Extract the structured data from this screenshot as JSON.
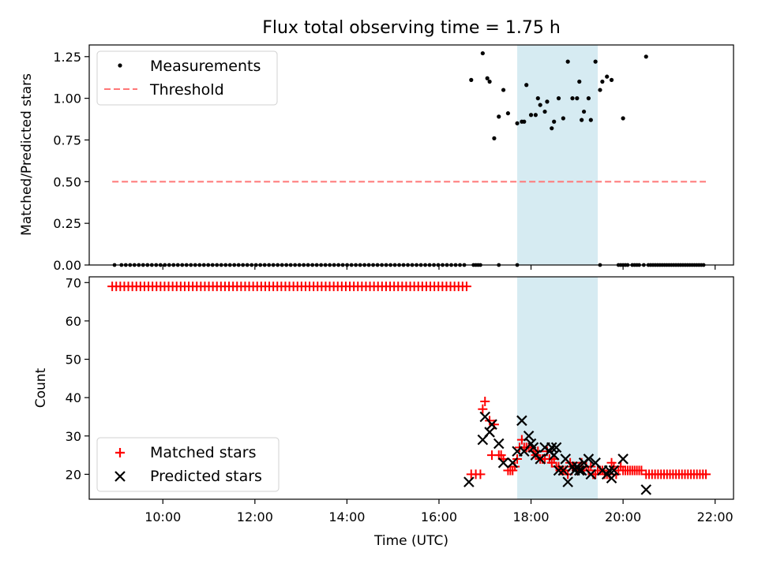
{
  "chart_data": [
    {
      "type": "scatter",
      "title": "Flux total observing time = 1.75 h",
      "xlabel": "",
      "ylabel": "Matched/Predicted stars",
      "xlim_hours": [
        8.4,
        22.4
      ],
      "ylim": [
        0,
        1.32
      ],
      "yticks": [
        0.0,
        0.25,
        0.5,
        0.75,
        1.0,
        1.25
      ],
      "ytick_labels": [
        "0.00",
        "0.25",
        "0.50",
        "0.75",
        "1.00",
        "1.25"
      ],
      "shaded_span_hours": [
        17.7,
        19.45
      ],
      "legend_location": "upper-left",
      "series": [
        {
          "name": "Measurements",
          "marker": "dot",
          "color": "#000000",
          "zero_count": 80,
          "zero_range_hours": [
            9.1,
            16.55
          ],
          "zero_extra_hours": [
            8.95,
            16.75,
            16.8,
            16.85,
            16.9,
            17.3,
            17.7,
            19.5,
            19.9,
            19.95,
            20.0,
            20.05,
            20.1,
            20.2,
            20.25,
            20.3,
            20.35,
            20.45,
            20.55,
            20.6,
            20.65,
            20.7,
            20.75,
            20.8,
            20.85,
            20.9,
            20.95,
            21.0,
            21.05,
            21.1,
            21.15,
            21.2,
            21.25,
            21.3,
            21.35,
            21.4,
            21.45,
            21.5,
            21.55,
            21.6,
            21.65,
            21.7,
            21.75
          ],
          "x_hours": [
            16.7,
            16.95,
            17.05,
            17.1,
            17.2,
            17.3,
            17.4,
            17.5,
            17.7,
            17.8,
            17.85,
            17.9,
            18.0,
            18.1,
            18.15,
            18.2,
            18.3,
            18.35,
            18.45,
            18.5,
            18.6,
            18.7,
            18.8,
            18.9,
            19.0,
            19.05,
            19.1,
            19.15,
            19.25,
            19.3,
            19.4,
            19.5,
            19.55,
            19.65,
            19.75,
            20.0,
            20.5
          ],
          "y": [
            1.11,
            1.27,
            1.12,
            1.1,
            0.76,
            0.89,
            1.05,
            0.91,
            0.85,
            0.86,
            0.86,
            1.08,
            0.9,
            0.9,
            1.0,
            0.96,
            0.92,
            0.98,
            0.82,
            0.86,
            1.0,
            0.88,
            1.22,
            1.0,
            1.0,
            1.1,
            0.87,
            0.92,
            1.0,
            0.87,
            1.22,
            1.05,
            1.1,
            1.13,
            1.11,
            0.88,
            1.25
          ]
        },
        {
          "name": "Threshold",
          "line": "dashed",
          "color": "#ff7777",
          "x_hours": [
            8.9,
            21.8
          ],
          "y": [
            0.5,
            0.5
          ]
        }
      ]
    },
    {
      "type": "scatter",
      "title": "",
      "xlabel": "Time (UTC)",
      "ylabel": "Count",
      "xlim_hours": [
        8.4,
        22.4
      ],
      "ylim": [
        13.5,
        71.5
      ],
      "yticks": [
        20,
        30,
        40,
        50,
        60,
        70
      ],
      "ytick_labels": [
        "20",
        "30",
        "40",
        "50",
        "60",
        "70"
      ],
      "xticks_hours": [
        10,
        12,
        14,
        16,
        18,
        20,
        22
      ],
      "xtick_labels": [
        "10:00",
        "12:00",
        "14:00",
        "16:00",
        "18:00",
        "20:00",
        "22:00"
      ],
      "shaded_span_hours": [
        17.7,
        19.45
      ],
      "legend_location": "lower-left",
      "series": [
        {
          "name": "Matched stars",
          "marker": "plus",
          "color": "#ff0000",
          "constant_segment": {
            "from_hours": 8.9,
            "to_hours": 16.65,
            "step_hours": 0.0875,
            "value": 69
          },
          "tail_segment": {
            "from_hours": 20.5,
            "to_hours": 21.8,
            "step_hours": 0.065,
            "value": 20
          },
          "x_hours": [
            16.7,
            16.8,
            16.9,
            16.95,
            17.0,
            17.1,
            17.15,
            17.2,
            17.3,
            17.35,
            17.4,
            17.5,
            17.55,
            17.6,
            17.65,
            17.7,
            17.75,
            17.8,
            17.85,
            17.9,
            17.95,
            18.0,
            18.05,
            18.1,
            18.15,
            18.2,
            18.25,
            18.3,
            18.35,
            18.4,
            18.45,
            18.5,
            18.55,
            18.6,
            18.65,
            18.7,
            18.75,
            18.8,
            18.85,
            18.9,
            18.95,
            19.0,
            19.05,
            19.1,
            19.15,
            19.2,
            19.25,
            19.3,
            19.35,
            19.4,
            19.45,
            19.5,
            19.55,
            19.6,
            19.65,
            19.7,
            19.75,
            19.8,
            19.85,
            19.9,
            19.95,
            20.0,
            20.05,
            20.1,
            20.15,
            20.2,
            20.25,
            20.3,
            20.35,
            20.4
          ],
          "y": [
            20,
            20,
            20,
            37,
            39,
            34,
            25,
            33,
            25,
            25,
            24,
            21,
            21,
            21,
            22,
            24,
            27,
            29,
            27,
            27,
            27,
            27,
            26,
            25,
            26,
            24,
            24,
            24,
            26,
            24,
            23,
            24,
            22,
            22,
            21,
            21,
            21,
            20,
            23,
            22,
            22,
            21,
            22,
            23,
            21,
            22,
            21,
            22,
            20,
            20,
            21,
            21,
            21,
            20,
            20,
            20,
            23,
            22,
            20,
            21,
            22,
            21,
            21,
            21,
            21,
            21,
            21,
            21,
            21,
            21
          ]
        },
        {
          "name": "Predicted stars",
          "marker": "cross",
          "color": "#000000",
          "x_hours": [
            16.65,
            16.95,
            17.0,
            17.1,
            17.15,
            17.3,
            17.4,
            17.6,
            17.7,
            17.8,
            17.85,
            17.95,
            18.0,
            18.05,
            18.1,
            18.2,
            18.3,
            18.4,
            18.45,
            18.5,
            18.55,
            18.6,
            18.7,
            18.75,
            18.8,
            18.9,
            18.95,
            19.0,
            19.05,
            19.1,
            19.15,
            19.25,
            19.3,
            19.4,
            19.55,
            19.65,
            19.7,
            19.75,
            19.8,
            20.0,
            20.5
          ],
          "y": [
            18,
            29,
            35,
            31,
            33,
            28,
            23,
            23,
            26,
            34,
            26,
            30,
            28,
            27,
            25,
            24,
            27,
            26,
            27,
            25,
            27,
            21,
            21,
            24,
            18,
            22,
            21,
            22,
            21,
            21,
            23,
            24,
            20,
            23,
            21,
            20,
            21,
            19,
            21,
            24,
            16
          ]
        }
      ]
    }
  ]
}
